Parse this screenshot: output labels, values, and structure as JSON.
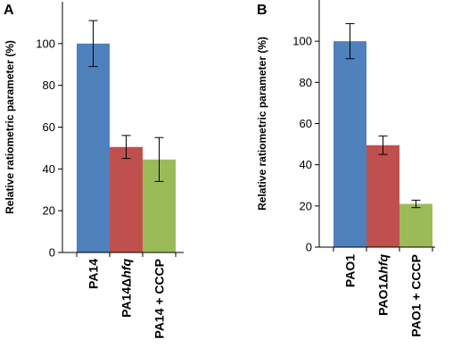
{
  "chart_data": [
    {
      "type": "bar",
      "panel_label": "A",
      "ylabel": "Relative ratiometric parameter (%)",
      "ylim": [
        0,
        120
      ],
      "yticks": [
        0,
        20,
        40,
        60,
        80,
        100
      ],
      "categories": [
        {
          "pre": "PA14",
          "italic": "",
          "post": ""
        },
        {
          "pre": "PA14Δ",
          "italic": "hfq",
          "post": ""
        },
        {
          "pre": "PA14 + CCCP",
          "italic": "",
          "post": ""
        }
      ],
      "values": [
        100,
        50.5,
        44.5
      ],
      "errors": [
        11,
        5.5,
        10.5
      ],
      "colors": [
        "#4F81BD",
        "#C0504D",
        "#9BBB59"
      ],
      "grid": false,
      "legend": "none"
    },
    {
      "type": "bar",
      "panel_label": "B",
      "ylabel": "Relative ratiometric parameter (%)",
      "ylim": [
        0,
        120
      ],
      "yticks": [
        0,
        20,
        40,
        60,
        80,
        100
      ],
      "categories": [
        {
          "pre": "PAO1",
          "italic": "",
          "post": ""
        },
        {
          "pre": "PAO1Δ",
          "italic": "hfq",
          "post": ""
        },
        {
          "pre": "PAO1 + CCCP",
          "italic": "",
          "post": ""
        }
      ],
      "values": [
        100,
        49.5,
        21
      ],
      "errors": [
        8.5,
        4.5,
        1.8
      ],
      "colors": [
        "#4F81BD",
        "#C0504D",
        "#9BBB59"
      ],
      "grid": false,
      "legend": "none"
    }
  ]
}
